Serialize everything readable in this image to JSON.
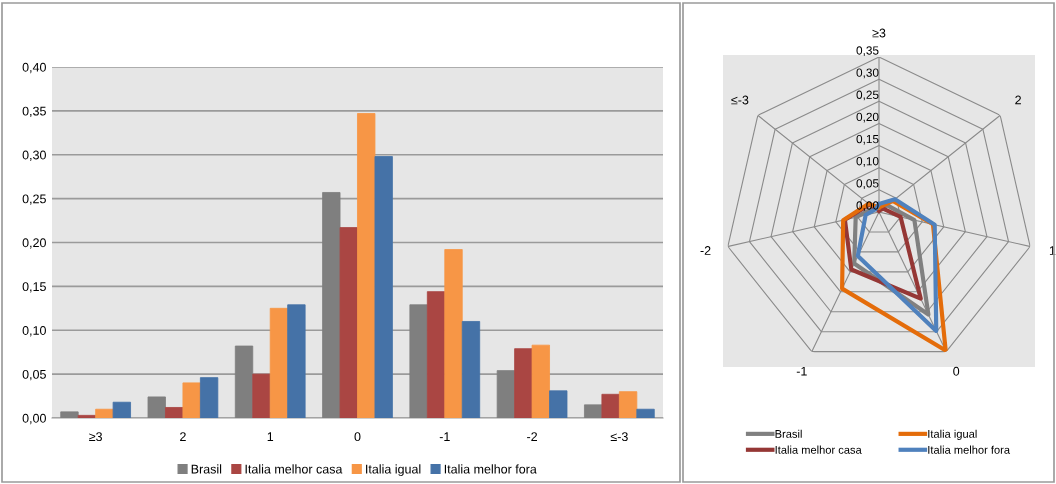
{
  "chart_data": [
    {
      "type": "bar",
      "categories": [
        "≥3",
        "2",
        "1",
        "0",
        "-1",
        "-2",
        "≤-3"
      ],
      "series": [
        {
          "name": "Brasil",
          "color": "#7f7f7f",
          "values": [
            0.007,
            0.024,
            0.082,
            0.257,
            0.129,
            0.054,
            0.015
          ]
        },
        {
          "name": "Italia melhor casa",
          "color": "#aa4643",
          "values": [
            0.003,
            0.012,
            0.05,
            0.217,
            0.144,
            0.079,
            0.027
          ]
        },
        {
          "name": "Italia igual",
          "color": "#f79646",
          "values": [
            0.01,
            0.04,
            0.125,
            0.347,
            0.192,
            0.083,
            0.03
          ]
        },
        {
          "name": "Italia melhor fora",
          "color": "#4572a7",
          "values": [
            0.018,
            0.046,
            0.129,
            0.298,
            0.11,
            0.031,
            0.01
          ]
        }
      ],
      "ylim": [
        0,
        0.4
      ],
      "yticks": [
        {
          "value": 0,
          "label": "0,00"
        },
        {
          "value": 0.05,
          "label": "0,05"
        },
        {
          "value": 0.1,
          "label": "0,10"
        },
        {
          "value": 0.15,
          "label": "0,15"
        },
        {
          "value": 0.2,
          "label": "0,20"
        },
        {
          "value": 0.25,
          "label": "0,25"
        },
        {
          "value": 0.3,
          "label": "0,30"
        },
        {
          "value": 0.35,
          "label": "0,35"
        },
        {
          "value": 0.4,
          "label": "0,40"
        }
      ],
      "grid": "y",
      "legend": "bottom"
    },
    {
      "type": "radar",
      "categories": [
        "≥3",
        "2",
        "1",
        "0",
        "-1",
        "-2",
        "≤-3"
      ],
      "series": [
        {
          "name": "Brasil",
          "color": "#808080",
          "values": [
            0.007,
            0.024,
            0.082,
            0.257,
            0.129,
            0.054,
            0.015
          ]
        },
        {
          "name": "Italia melhor casa",
          "color": "#953735",
          "values": [
            0.003,
            0.012,
            0.05,
            0.217,
            0.144,
            0.079,
            0.027
          ]
        },
        {
          "name": "Italia igual",
          "color": "#e46c0a",
          "values": [
            0.01,
            0.04,
            0.125,
            0.347,
            0.192,
            0.083,
            0.03
          ]
        },
        {
          "name": "Italia melhor fora",
          "color": "#4f81bd",
          "values": [
            0.018,
            0.046,
            0.129,
            0.298,
            0.11,
            0.031,
            0.01
          ]
        }
      ],
      "ylim": [
        0,
        0.35
      ],
      "yticks": [
        {
          "value": 0,
          "label": "0,00"
        },
        {
          "value": 0.05,
          "label": "0,05"
        },
        {
          "value": 0.1,
          "label": "0,10"
        },
        {
          "value": 0.15,
          "label": "0,15"
        },
        {
          "value": 0.2,
          "label": "0,20"
        },
        {
          "value": 0.25,
          "label": "0,25"
        },
        {
          "value": 0.3,
          "label": "0,30"
        },
        {
          "value": 0.35,
          "label": "0,35"
        }
      ],
      "grid": true,
      "legend": "bottom"
    }
  ]
}
